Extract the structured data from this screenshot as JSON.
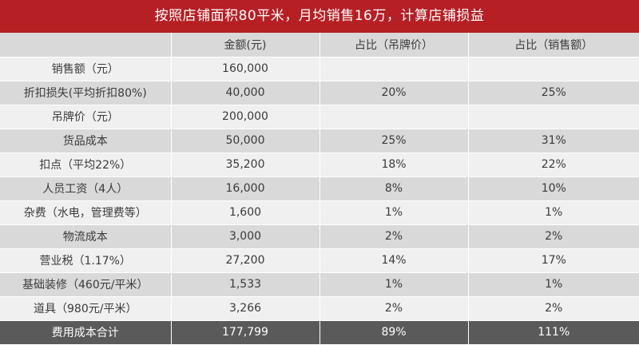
{
  "title": "按照店铺面积80平米，月均销售16万，计算店铺损益",
  "columns": [
    "",
    "金额(元)",
    "占比（吊牌价）",
    "占比（销售额）"
  ],
  "rows": [
    {
      "label": "销售额（元）",
      "amount": "160,000",
      "pct_tag": "",
      "pct_sales": ""
    },
    {
      "label": "折扣损失(平均折扣80%)",
      "amount": "40,000",
      "pct_tag": "20%",
      "pct_sales": "25%"
    },
    {
      "label": "吊牌价（元）",
      "amount": "200,000",
      "pct_tag": "",
      "pct_sales": ""
    },
    {
      "label": "货品成本",
      "amount": "50,000",
      "pct_tag": "25%",
      "pct_sales": "31%"
    },
    {
      "label": "扣点（平均22%）",
      "amount": "35,200",
      "pct_tag": "18%",
      "pct_sales": "22%"
    },
    {
      "label": "人员工资（4人）",
      "amount": "16,000",
      "pct_tag": "8%",
      "pct_sales": "10%"
    },
    {
      "label": "杂费（水电，管理费等）",
      "amount": "1,600",
      "pct_tag": "1%",
      "pct_sales": "1%"
    },
    {
      "label": "物流成本",
      "amount": "3,000",
      "pct_tag": "2%",
      "pct_sales": "2%"
    },
    {
      "label": "营业税（1.17%）",
      "amount": "27,200",
      "pct_tag": "14%",
      "pct_sales": "17%"
    },
    {
      "label": "基础装修（460元/平米）",
      "amount": "1,533",
      "pct_tag": "1%",
      "pct_sales": "1%"
    },
    {
      "label": "道具（980元/平米）",
      "amount": "3,266",
      "pct_tag": "2%",
      "pct_sales": "2%"
    }
  ],
  "total": {
    "label": "费用成本合计",
    "amount": "177,799",
    "pct_tag": "89%",
    "pct_sales": "111%"
  },
  "colors": {
    "title_bg": "#b61f24",
    "total_bg": "#5a5a5a",
    "row_light": "#f0f0f0",
    "row_dark": "#d9d9d9"
  }
}
